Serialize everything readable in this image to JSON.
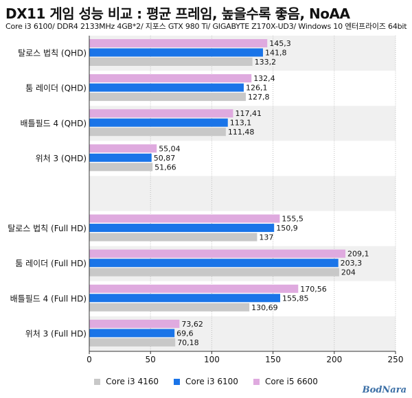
{
  "chart_data": {
    "type": "bar",
    "orientation": "horizontal",
    "title": "DX11 게임 성능 비교 : 평균 프레임, 높을수록 좋음, NoAA",
    "subtitle": "Core i3 6100/ DDR4 2133MHz 4GB*2/ 지포스 GTX 980 Ti/ GIGABYTE Z170X-UD3/ Windows 10 엔터프라이즈 64bit",
    "categories": [
      "탈로스 법칙 (QHD)",
      "툼 레이더 (QHD)",
      "배틀필드 4 (QHD)",
      "위처 3 (QHD)",
      "",
      "탈로스 법칙 (Full HD)",
      "툼 레이더 (Full HD)",
      "배틀필드 4 (Full HD)",
      "위처 3 (Full HD)"
    ],
    "series": [
      {
        "name": "Core i5 6600",
        "color": "#dfaadf",
        "values": [
          145.3,
          132.4,
          117.41,
          55.04,
          null,
          155.5,
          209.1,
          170.56,
          73.62
        ],
        "labels": [
          "145,3",
          "132,4",
          "117,41",
          "55,04",
          "",
          "155,5",
          "209,1",
          "170,56",
          "73,62"
        ]
      },
      {
        "name": "Core i3 6100",
        "color": "#1a74e8",
        "values": [
          141.8,
          126.1,
          113.1,
          50.87,
          null,
          150.9,
          203.3,
          155.85,
          69.6
        ],
        "labels": [
          "141,8",
          "126,1",
          "113,1",
          "50,87",
          "",
          "150,9",
          "203,3",
          "155,85",
          "69,6"
        ]
      },
      {
        "name": "Core i3 4160",
        "color": "#c8c8c8",
        "values": [
          133.2,
          127.8,
          111.48,
          51.66,
          null,
          137,
          204,
          130.69,
          70.18
        ],
        "labels": [
          "133,2",
          "127,8",
          "111,48",
          "51,66",
          "",
          "137",
          "204",
          "130,69",
          "70,18"
        ]
      }
    ],
    "legend_order": [
      "Core i3 4160",
      "Core i3 6100",
      "Core i5 6600"
    ],
    "xlim": [
      0,
      250
    ],
    "xticks": [
      0,
      50,
      100,
      150,
      200,
      250
    ],
    "xtick_labels": [
      "0",
      "50",
      "100",
      "150",
      "200",
      "250"
    ],
    "grid": true,
    "legend_position": "bottom",
    "band_color": "#f0f0f0"
  },
  "logo": "BodNara"
}
